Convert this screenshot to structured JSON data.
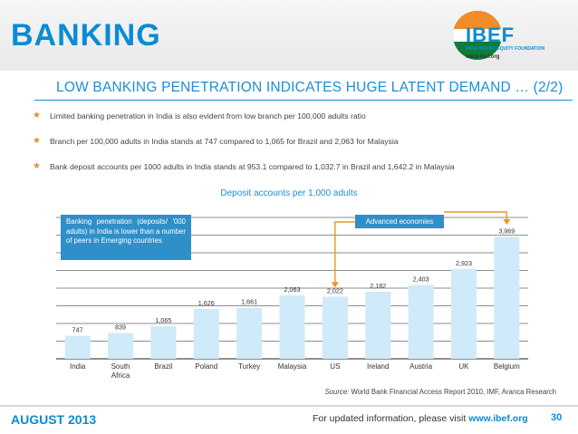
{
  "header": {
    "title": "BANKING",
    "logo": {
      "wordmark": "IBEF",
      "tagline": "INDIA BRAND EQUITY FOUNDATION",
      "url": "www.ibef.org"
    }
  },
  "slide": {
    "subtitle": "LOW BANKING PENETRATION INDICATES HUGE LATENT DEMAND … (2/2)",
    "bullets": [
      "Limited banking penetration in India is also evident from low branch per 100,000 adults ratio",
      "Branch per 100,000 adults in India stands at 747 compared to 1,065 for Brazil and 2,063 for Malaysia",
      "Bank deposit accounts per 1000 adults in India stands at 953.1 compared to 1,032.7 in Brazil and 1,642.2 in Malaysia"
    ],
    "callout_left": "Banking penetration (deposits/ '000 adults) in India is lower than a number of peers in Emerging countries",
    "callout_right": "Advanced economies",
    "source_label": "Source:",
    "source_text": " World Bank Financial Access Report 2010, IMF, Aranca Research"
  },
  "footer": {
    "date": "AUGUST 2013",
    "info_prefix": "For updated information, please visit ",
    "info_link": "www.ibef.org",
    "page_number": "30"
  },
  "colors": {
    "brand_blue": "#0a8bd4",
    "bar_fill": "#cfeaf8",
    "callout_bg": "#2f8fc8",
    "arrow": "#e8961e",
    "bullet_star": "#e8893a"
  },
  "chart_data": {
    "type": "bar",
    "title": "Deposit accounts per 1,000 adults",
    "categories": [
      "India",
      "South Africa",
      "Brazil",
      "Poland",
      "Turkey",
      "Malaysia",
      "US",
      "Ireland",
      "Austria",
      "UK",
      "Belgium"
    ],
    "values": [
      747,
      839,
      1065,
      1626,
      1661,
      2063,
      2022,
      2182,
      2403,
      2923,
      3969
    ],
    "value_labels": [
      "747",
      "839",
      "1,065",
      "1,626",
      "1,661",
      "2,063",
      "2,022",
      "2,182",
      "2,403",
      "2,923",
      "3,969"
    ],
    "xlabel": "",
    "ylabel": "",
    "ylim": [
      0,
      4600
    ],
    "grid": true,
    "legend": "none"
  }
}
